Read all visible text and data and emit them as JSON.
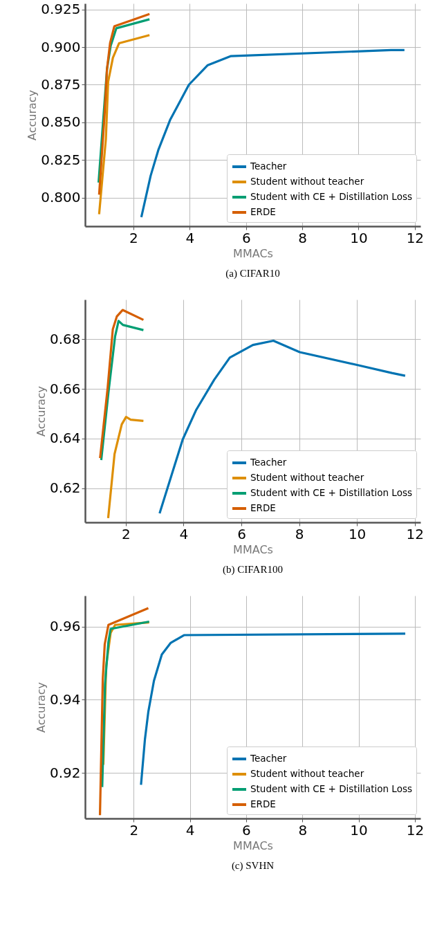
{
  "chart_data": [
    {
      "type": "line",
      "title": "(a) CIFAR10",
      "xlabel": "MMACs",
      "ylabel": "Accuracy",
      "xlim": [
        0.28,
        12.2
      ],
      "ylim": [
        0.781,
        0.929
      ],
      "xticks": [
        2,
        4,
        6,
        8,
        10,
        12
      ],
      "yticks": [
        {
          "value": 0.8,
          "label": "0.800"
        },
        0.825,
        {
          "value": 0.85,
          "label": "0.850"
        },
        0.875,
        {
          "value": 0.9,
          "label": "0.900"
        },
        0.925
      ],
      "grid": true,
      "legend": "bottom right",
      "line_style": "solid",
      "marker": "none",
      "series": [
        {
          "name": "Teacher",
          "color": "#0173b2",
          "x": [
            2.28,
            2.61,
            2.89,
            3.3,
            3.97,
            4.64,
            5.45,
            11.15,
            11.63
          ],
          "values": [
            0.787,
            0.8145,
            0.832,
            0.8515,
            0.875,
            0.888,
            0.894,
            0.898,
            0.898
          ]
        },
        {
          "name": "Student without teacher",
          "color": "#de8f05",
          "x": [
            0.78,
            1.02,
            1.1,
            1.27,
            1.49,
            2.57
          ],
          "values": [
            0.789,
            0.839,
            0.877,
            0.893,
            0.9026,
            0.908
          ]
        },
        {
          "name": "Student with CE + Distillation Loss",
          "color": "#029e73",
          "x": [
            0.76,
            1.06,
            1.19,
            1.39,
            2.57
          ],
          "values": [
            0.81,
            0.8855,
            0.9008,
            0.9125,
            0.9185
          ]
        },
        {
          "name": "ERDE",
          "color": "#d55e00",
          "x": [
            0.78,
            0.97,
            1.06,
            1.17,
            1.32,
            2.57
          ],
          "values": [
            0.802,
            0.854,
            0.8855,
            0.9027,
            0.9138,
            0.922
          ]
        }
      ]
    },
    {
      "type": "line",
      "title": "(b) CIFAR100",
      "xlabel": "MMACs",
      "ylabel": "Accuracy",
      "xlim": [
        0.59,
        12.2
      ],
      "ylim": [
        0.6062,
        0.696
      ],
      "xticks": [
        2,
        4,
        6,
        8,
        10,
        12
      ],
      "yticks": [
        0.62,
        0.64,
        0.66,
        0.68
      ],
      "grid": true,
      "legend": "bottom right",
      "line_style": "solid",
      "marker": "none",
      "series": [
        {
          "name": "Teacher",
          "color": "#0173b2",
          "x": [
            3.17,
            3.97,
            4.44,
            5.06,
            5.6,
            6.4,
            7.11,
            8.02,
            9.98,
            11.21,
            11.67
          ],
          "values": [
            0.6098,
            0.6396,
            0.6516,
            0.6637,
            0.6726,
            0.6777,
            0.6794,
            0.6748,
            0.6697,
            0.6664,
            0.6653
          ]
        },
        {
          "name": "Student without teacher",
          "color": "#de8f05",
          "x": [
            1.39,
            1.61,
            1.86,
            2.01,
            2.17,
            2.61
          ],
          "values": [
            0.6079,
            0.6337,
            0.6457,
            0.6487,
            0.6476,
            0.6471
          ]
        },
        {
          "name": "Student with CE + Distillation Loss",
          "color": "#029e73",
          "x": [
            1.15,
            1.4,
            1.63,
            1.75,
            1.9,
            2.61
          ],
          "values": [
            0.6313,
            0.6586,
            0.6812,
            0.6874,
            0.6858,
            0.6837
          ]
        },
        {
          "name": "ERDE",
          "color": "#d55e00",
          "x": [
            1.11,
            1.37,
            1.55,
            1.69,
            1.89,
            2.61
          ],
          "values": [
            0.6321,
            0.6602,
            0.684,
            0.6892,
            0.6918,
            0.6878
          ]
        }
      ]
    },
    {
      "type": "line",
      "title": "(c) SVHN",
      "xlabel": "MMACs",
      "ylabel": "Accuracy",
      "xlim": [
        0.27,
        12.2
      ],
      "ylim": [
        0.9075,
        0.9685
      ],
      "xticks": [
        2,
        4,
        6,
        8,
        10,
        12
      ],
      "yticks": [
        0.92,
        0.94,
        0.96
      ],
      "grid": true,
      "legend": "bottom right",
      "line_style": "solid",
      "marker": "none",
      "series": [
        {
          "name": "Teacher",
          "color": "#0173b2",
          "x": [
            2.26,
            2.4,
            2.52,
            2.72,
            3.0,
            3.32,
            3.79,
            11.66
          ],
          "values": [
            0.9167,
            0.9292,
            0.9367,
            0.9452,
            0.9524,
            0.9556,
            0.9577,
            0.9581
          ]
        },
        {
          "name": "Student without teacher",
          "color": "#de8f05",
          "x": [
            0.92,
            1.02,
            1.18,
            1.34,
            2.55
          ],
          "values": [
            0.9222,
            0.9492,
            0.9583,
            0.9605,
            0.9612
          ]
        },
        {
          "name": "Student with CE + Distillation Loss",
          "color": "#029e73",
          "x": [
            0.88,
            0.98,
            1.1,
            1.18,
            2.55
          ],
          "values": [
            0.9161,
            0.9443,
            0.9558,
            0.9594,
            0.9614
          ]
        },
        {
          "name": "ERDE",
          "color": "#d55e00",
          "x": [
            0.8,
            0.9,
            0.97,
            1.1,
            2.52
          ],
          "values": [
            0.9084,
            0.9456,
            0.9552,
            0.9605,
            0.9651
          ]
        }
      ]
    }
  ]
}
